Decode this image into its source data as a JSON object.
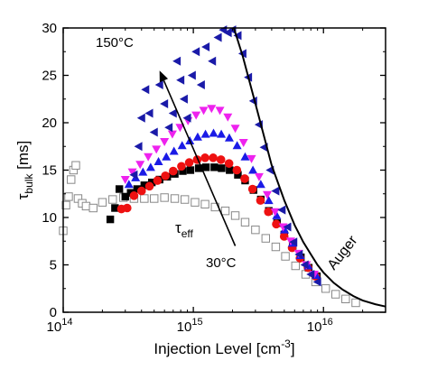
{
  "chart_data": {
    "type": "scatter",
    "title": "",
    "xlabel": "Injection Level [cm",
    "xlabel_sup": "-3",
    "xlabel_end": "]",
    "ylabel_main": "τ",
    "ylabel_sub": "bulk",
    "ylabel_unit": " [ms]",
    "xscale": "log",
    "xlim": [
      100000000000000.0,
      3e+16
    ],
    "ylim": [
      0,
      30
    ],
    "grid": false,
    "x_ticks": [
      {
        "value": 100000000000000.0,
        "base": "10",
        "exp": "14"
      },
      {
        "value": 1000000000000000.0,
        "base": "10",
        "exp": "15"
      },
      {
        "value": 1e+16,
        "base": "10",
        "exp": "16"
      }
    ],
    "y_ticks": [
      "0",
      "5",
      "10",
      "15",
      "20",
      "25",
      "30"
    ],
    "annotations": {
      "temp_high": "150°C",
      "temp_low": "30°C",
      "tau_main": "τ",
      "tau_sub": "eff",
      "auger": "Auger"
    },
    "colors": {
      "open_squares": "#888888",
      "black_squares": "#000000",
      "red_circles": "#ee1111",
      "blue_triangles_up": "#1a1ae6",
      "magenta_triangles_down": "#ee22ee",
      "navy_triangles_left": "#1a1aa8",
      "auger_line": "#000000"
    },
    "series": [
      {
        "marker": "open-square",
        "points": [
          [
            100000000000000.0,
            8.6
          ],
          [
            105000000000000.0,
            11.3
          ],
          [
            110000000000000.0,
            12.2
          ],
          [
            115000000000000.0,
            14.0
          ],
          [
            120000000000000.0,
            15.0
          ],
          [
            125000000000000.0,
            15.5
          ],
          [
            130000000000000.0,
            12.0
          ],
          [
            140000000000000.0,
            11.5
          ],
          [
            150000000000000.0,
            11.2
          ],
          [
            170000000000000.0,
            11.0
          ],
          [
            200000000000000.0,
            11.6
          ],
          [
            240000000000000.0,
            11.9
          ],
          [
            290000000000000.0,
            12.1
          ],
          [
            350000000000000.0,
            12.0
          ],
          [
            420000000000000.0,
            12.0
          ],
          [
            500000000000000.0,
            12.0
          ],
          [
            600000000000000.0,
            12.1
          ],
          [
            720000000000000.0,
            12.0
          ],
          [
            860000000000000.0,
            11.9
          ],
          [
            1030000000000000.0,
            11.6
          ],
          [
            1230000000000000.0,
            11.4
          ],
          [
            1470000000000000.0,
            11.1
          ],
          [
            1760000000000000.0,
            10.7
          ],
          [
            2100000000000000.0,
            10.2
          ],
          [
            2500000000000000.0,
            9.5
          ],
          [
            3000000000000000.0,
            8.7
          ],
          [
            3600000000000000.0,
            7.8
          ],
          [
            4300000000000000.0,
            6.9
          ],
          [
            5100000000000000.0,
            5.9
          ],
          [
            6100000000000000.0,
            4.9
          ],
          [
            7300000000000000.0,
            4.0
          ],
          [
            8700000000000000.0,
            3.2
          ],
          [
            1.04e+16,
            2.5
          ],
          [
            1.24e+16,
            1.9
          ],
          [
            1.48e+16,
            1.4
          ],
          [
            1.77e+16,
            1.0
          ]
        ]
      },
      {
        "marker": "black-square",
        "points": [
          [
            230000000000000.0,
            9.8
          ],
          [
            250000000000000.0,
            11.0
          ],
          [
            270000000000000.0,
            13.0
          ],
          [
            300000000000000.0,
            12.2
          ],
          [
            330000000000000.0,
            12.6
          ],
          [
            370000000000000.0,
            13.0
          ],
          [
            420000000000000.0,
            13.4
          ],
          [
            480000000000000.0,
            13.7
          ],
          [
            550000000000000.0,
            14.0
          ],
          [
            630000000000000.0,
            14.3
          ],
          [
            720000000000000.0,
            14.6
          ],
          [
            830000000000000.0,
            14.9
          ],
          [
            950000000000000.0,
            15.0
          ],
          [
            1100000000000000.0,
            15.2
          ],
          [
            1250000000000000.0,
            15.3
          ],
          [
            1450000000000000.0,
            15.3
          ],
          [
            1650000000000000.0,
            15.2
          ],
          [
            1900000000000000.0,
            15.0
          ],
          [
            2200000000000000.0,
            14.5
          ],
          [
            2500000000000000.0,
            13.9
          ],
          [
            2900000000000000.0,
            12.9
          ],
          [
            3300000000000000.0,
            11.9
          ],
          [
            3800000000000000.0,
            10.7
          ],
          [
            4400000000000000.0,
            9.4
          ],
          [
            5000000000000000.0,
            8.2
          ],
          [
            5800000000000000.0,
            7.0
          ],
          [
            6700000000000000.0,
            5.8
          ],
          [
            7700000000000000.0,
            4.7
          ],
          [
            8900000000000000.0,
            3.8
          ]
        ]
      },
      {
        "marker": "red-circle",
        "points": [
          [
            280000000000000.0,
            10.9
          ],
          [
            310000000000000.0,
            11.0
          ],
          [
            350000000000000.0,
            12.3
          ],
          [
            400000000000000.0,
            12.8
          ],
          [
            460000000000000.0,
            13.3
          ],
          [
            530000000000000.0,
            13.9
          ],
          [
            610000000000000.0,
            14.4
          ],
          [
            700000000000000.0,
            14.9
          ],
          [
            810000000000000.0,
            15.4
          ],
          [
            930000000000000.0,
            15.8
          ],
          [
            1070000000000000.0,
            16.1
          ],
          [
            1230000000000000.0,
            16.3
          ],
          [
            1420000000000000.0,
            16.3
          ],
          [
            1630000000000000.0,
            16.1
          ],
          [
            1880000000000000.0,
            15.7
          ],
          [
            2160000000000000.0,
            15.0
          ],
          [
            2480000000000000.0,
            14.1
          ],
          [
            2850000000000000.0,
            13.0
          ],
          [
            3280000000000000.0,
            11.8
          ],
          [
            3770000000000000.0,
            10.6
          ],
          [
            4340000000000000.0,
            9.3
          ],
          [
            4990000000000000.0,
            8.0
          ],
          [
            5740000000000000.0,
            6.8
          ],
          [
            6600000000000000.0,
            5.7
          ],
          [
            7600000000000000.0,
            4.7
          ],
          [
            8700000000000000.0,
            3.8
          ]
        ]
      },
      {
        "marker": "blue-triangle-up",
        "points": [
          [
            320000000000000.0,
            13.5
          ],
          [
            360000000000000.0,
            14.2
          ],
          [
            410000000000000.0,
            14.8
          ],
          [
            470000000000000.0,
            15.3
          ],
          [
            540000000000000.0,
            15.9
          ],
          [
            620000000000000.0,
            16.4
          ],
          [
            710000000000000.0,
            17.0
          ],
          [
            820000000000000.0,
            17.6
          ],
          [
            940000000000000.0,
            18.1
          ],
          [
            1080000000000000.0,
            18.5
          ],
          [
            1240000000000000.0,
            18.8
          ],
          [
            1430000000000000.0,
            18.9
          ],
          [
            1640000000000000.0,
            18.8
          ],
          [
            1890000000000000.0,
            18.4
          ],
          [
            2170000000000000.0,
            17.6
          ],
          [
            2500000000000000.0,
            16.4
          ],
          [
            2870000000000000.0,
            15.0
          ],
          [
            3300000000000000.0,
            13.5
          ],
          [
            3800000000000000.0,
            11.8
          ],
          [
            4370000000000000.0,
            10.2
          ],
          [
            5020000000000000.0,
            8.7
          ],
          [
            5780000000000000.0,
            7.3
          ],
          [
            6640000000000000.0,
            6.0
          ],
          [
            7640000000000000.0,
            4.9
          ],
          [
            8800000000000000.0,
            3.9
          ]
        ]
      },
      {
        "marker": "magenta-triangle-down",
        "points": [
          [
            300000000000000.0,
            14.0
          ],
          [
            340000000000000.0,
            14.8
          ],
          [
            390000000000000.0,
            15.6
          ],
          [
            450000000000000.0,
            16.4
          ],
          [
            520000000000000.0,
            17.2
          ],
          [
            600000000000000.0,
            18.0
          ],
          [
            690000000000000.0,
            18.8
          ],
          [
            790000000000000.0,
            19.5
          ],
          [
            910000000000000.0,
            20.2
          ],
          [
            1050000000000000.0,
            20.8
          ],
          [
            1200000000000000.0,
            21.3
          ],
          [
            1380000000000000.0,
            21.5
          ],
          [
            1600000000000000.0,
            21.3
          ],
          [
            1840000000000000.0,
            20.6
          ],
          [
            2100000000000000.0,
            19.4
          ],
          [
            2430000000000000.0,
            17.9
          ],
          [
            2800000000000000.0,
            16.2
          ],
          [
            3200000000000000.0,
            14.3
          ],
          [
            3700000000000000.0,
            12.4
          ],
          [
            4250000000000000.0,
            10.6
          ],
          [
            4900000000000000.0,
            9.0
          ],
          [
            5600000000000000.0,
            7.5
          ],
          [
            6450000000000000.0,
            6.2
          ],
          [
            7400000000000000.0,
            5.0
          ],
          [
            8500000000000000.0,
            4.0
          ]
        ]
      },
      {
        "marker": "navy-triangle-left",
        "points": [
          [
            350000000000000.0,
            14.5
          ],
          [
            380000000000000.0,
            17.5
          ],
          [
            400000000000000.0,
            20.5
          ],
          [
            430000000000000.0,
            23.5
          ],
          [
            460000000000000.0,
            21.0
          ],
          [
            500000000000000.0,
            19.0
          ],
          [
            550000000000000.0,
            24.0
          ],
          [
            600000000000000.0,
            22.0
          ],
          [
            650000000000000.0,
            19.5
          ],
          [
            700000000000000.0,
            21.0
          ],
          [
            750000000000000.0,
            26.5
          ],
          [
            800000000000000.0,
            24.5
          ],
          [
            850000000000000.0,
            22.5
          ],
          [
            900000000000000.0,
            20.5
          ],
          [
            980000000000000.0,
            25.0
          ],
          [
            1050000000000000.0,
            27.5
          ],
          [
            1150000000000000.0,
            24.0
          ],
          [
            1250000000000000.0,
            28.0
          ],
          [
            1400000000000000.0,
            26.5
          ],
          [
            1550000000000000.0,
            29.0
          ],
          [
            1700000000000000.0,
            29.8
          ],
          [
            1850000000000000.0,
            29.5
          ],
          [
            2000000000000000.0,
            29.8
          ],
          [
            2200000000000000.0,
            29.2
          ],
          [
            2400000000000000.0,
            27.3
          ],
          [
            2650000000000000.0,
            24.8
          ],
          [
            2900000000000000.0,
            22.3
          ],
          [
            3200000000000000.0,
            19.8
          ],
          [
            3500000000000000.0,
            17.4
          ],
          [
            3900000000000000.0,
            15.0
          ],
          [
            4300000000000000.0,
            12.8
          ],
          [
            4800000000000000.0,
            10.8
          ],
          [
            5300000000000000.0,
            9.0
          ],
          [
            5900000000000000.0,
            7.4
          ],
          [
            6500000000000000.0,
            6.1
          ],
          [
            7200000000000000.0,
            5.0
          ],
          [
            8000000000000000.0,
            4.0
          ],
          [
            9000000000000000.0,
            3.2
          ]
        ]
      }
    ],
    "auger_line": [
      [
        2050000000000000.0,
        30.0
      ],
      [
        2400000000000000.0,
        27.0
      ],
      [
        3000000000000000.0,
        22.0
      ],
      [
        4000000000000000.0,
        15.5
      ],
      [
        5000000000000000.0,
        11.8
      ],
      [
        6000000000000000.0,
        9.2
      ],
      [
        7000000000000000.0,
        7.4
      ],
      [
        8000000000000000.0,
        6.1
      ],
      [
        9000000000000000.0,
        5.0
      ],
      [
        1e+16,
        4.2
      ],
      [
        1.2e+16,
        3.1
      ],
      [
        1.4e+16,
        2.4
      ],
      [
        1.7e+16,
        1.7
      ],
      [
        2e+16,
        1.25
      ],
      [
        2.5e+16,
        0.85
      ],
      [
        3e+16,
        0.6
      ]
    ],
    "arrow": {
      "from": [
        2100000000000000.0,
        7.0
      ],
      "to": [
        550000000000000.0,
        25.5
      ]
    }
  }
}
